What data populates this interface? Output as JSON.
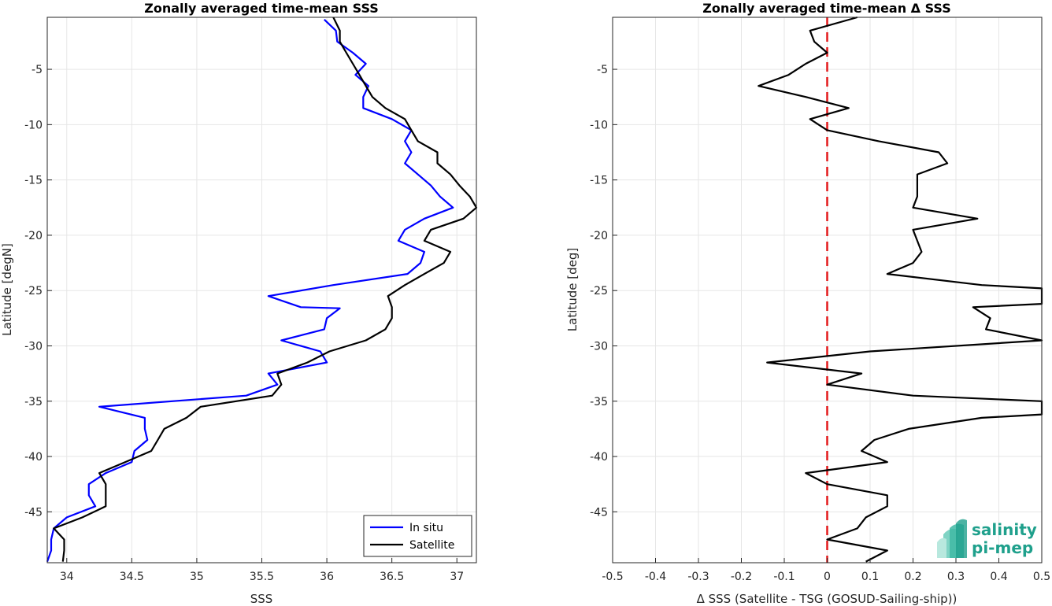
{
  "colors": {
    "insitu": "#0000ff",
    "satellite": "#000000",
    "zero_line": "#e31a1c",
    "grid": "#e6e6e6",
    "logo": "#1fa08c"
  },
  "logo": {
    "line1": "salinity",
    "line2": "pi-mep"
  },
  "chart_data": [
    {
      "type": "line",
      "title": "Zonally averaged time-mean SSS",
      "xlabel": "SSS",
      "ylabel": "Latitude [degN]",
      "xlim": [
        33.85,
        37.15
      ],
      "ylim": [
        -49.6,
        -0.3
      ],
      "xticks": [
        34,
        34.5,
        35,
        35.5,
        36,
        36.5,
        37
      ],
      "xtick_labels": [
        "34",
        "34.5",
        "35",
        "35.5",
        "36",
        "36.5",
        "37"
      ],
      "yticks": [
        -5,
        -10,
        -15,
        -20,
        -25,
        -30,
        -35,
        -40,
        -45
      ],
      "ytick_labels": [
        "-5",
        "-10",
        "-15",
        "-20",
        "-25",
        "-30",
        "-35",
        "-40",
        "-45"
      ],
      "grid": true,
      "legend_position": "bottom-right",
      "series": [
        {
          "name": "In situ",
          "color": "#0000ff",
          "points": [
            [
              35.98,
              -0.5
            ],
            [
              36.07,
              -1.5
            ],
            [
              36.08,
              -2.5
            ],
            [
              36.2,
              -3.5
            ],
            [
              36.3,
              -4.5
            ],
            [
              36.22,
              -5.5
            ],
            [
              36.32,
              -6.5
            ],
            [
              36.28,
              -7.5
            ],
            [
              36.28,
              -8.5
            ],
            [
              36.5,
              -9.5
            ],
            [
              36.65,
              -10.5
            ],
            [
              36.6,
              -11.5
            ],
            [
              36.65,
              -12.5
            ],
            [
              36.6,
              -13.5
            ],
            [
              36.7,
              -14.5
            ],
            [
              36.8,
              -15.5
            ],
            [
              36.87,
              -16.5
            ],
            [
              36.97,
              -17.5
            ],
            [
              36.75,
              -18.5
            ],
            [
              36.6,
              -19.5
            ],
            [
              36.55,
              -20.5
            ],
            [
              36.75,
              -21.5
            ],
            [
              36.72,
              -22.5
            ],
            [
              36.62,
              -23.5
            ],
            [
              36.05,
              -24.5
            ],
            [
              35.55,
              -25.5
            ],
            [
              35.8,
              -26.5
            ],
            [
              36.1,
              -26.6
            ],
            [
              36.0,
              -27.5
            ],
            [
              35.98,
              -28.5
            ],
            [
              35.65,
              -29.5
            ],
            [
              35.95,
              -30.5
            ],
            [
              36.0,
              -31.5
            ],
            [
              35.55,
              -32.5
            ],
            [
              35.62,
              -33.5
            ],
            [
              35.38,
              -34.5
            ],
            [
              34.25,
              -35.5
            ],
            [
              34.6,
              -36.5
            ],
            [
              34.6,
              -37.5
            ],
            [
              34.62,
              -38.5
            ],
            [
              34.52,
              -39.5
            ],
            [
              34.5,
              -40.5
            ],
            [
              34.3,
              -41.5
            ],
            [
              34.17,
              -42.5
            ],
            [
              34.17,
              -43.5
            ],
            [
              34.22,
              -44.5
            ],
            [
              34.0,
              -45.5
            ],
            [
              33.9,
              -46.5
            ],
            [
              33.88,
              -47.5
            ],
            [
              33.88,
              -48.5
            ],
            [
              33.85,
              -49.5
            ]
          ]
        },
        {
          "name": "Satellite",
          "color": "#000000",
          "points": [
            [
              36.05,
              -0.3
            ],
            [
              36.1,
              -1.5
            ],
            [
              36.1,
              -2.5
            ],
            [
              36.15,
              -3.5
            ],
            [
              36.2,
              -4.5
            ],
            [
              36.25,
              -5.5
            ],
            [
              36.3,
              -6.5
            ],
            [
              36.35,
              -7.5
            ],
            [
              36.45,
              -8.5
            ],
            [
              36.6,
              -9.5
            ],
            [
              36.65,
              -10.5
            ],
            [
              36.7,
              -11.5
            ],
            [
              36.85,
              -12.5
            ],
            [
              36.85,
              -13.5
            ],
            [
              36.95,
              -14.5
            ],
            [
              37.02,
              -15.5
            ],
            [
              37.1,
              -16.5
            ],
            [
              37.15,
              -17.5
            ],
            [
              37.05,
              -18.5
            ],
            [
              36.8,
              -19.5
            ],
            [
              36.75,
              -20.5
            ],
            [
              36.95,
              -21.5
            ],
            [
              36.9,
              -22.5
            ],
            [
              36.75,
              -23.5
            ],
            [
              36.6,
              -24.5
            ],
            [
              36.47,
              -25.5
            ],
            [
              36.5,
              -26.5
            ],
            [
              36.5,
              -27.5
            ],
            [
              36.45,
              -28.5
            ],
            [
              36.3,
              -29.5
            ],
            [
              36.02,
              -30.5
            ],
            [
              35.85,
              -31.5
            ],
            [
              35.62,
              -32.5
            ],
            [
              35.65,
              -33.5
            ],
            [
              35.58,
              -34.5
            ],
            [
              35.03,
              -35.5
            ],
            [
              34.92,
              -36.5
            ],
            [
              34.75,
              -37.5
            ],
            [
              34.7,
              -38.5
            ],
            [
              34.65,
              -39.5
            ],
            [
              34.45,
              -40.5
            ],
            [
              34.25,
              -41.5
            ],
            [
              34.3,
              -42.5
            ],
            [
              34.3,
              -43.5
            ],
            [
              34.3,
              -44.5
            ],
            [
              34.12,
              -45.5
            ],
            [
              33.9,
              -46.5
            ],
            [
              33.98,
              -47.5
            ],
            [
              33.98,
              -48.5
            ],
            [
              33.97,
              -49.5
            ]
          ]
        }
      ]
    },
    {
      "type": "line",
      "title": "Zonally averaged time-mean Δ SSS",
      "xlabel": "Δ SSS (Satellite - TSG (GOSUD-Sailing-ship))",
      "ylabel": "Latitude [deg]",
      "xlim": [
        -0.5,
        0.5
      ],
      "ylim": [
        -49.6,
        -0.3
      ],
      "xticks": [
        -0.5,
        -0.4,
        -0.3,
        -0.2,
        -0.1,
        0,
        0.1,
        0.2,
        0.3,
        0.4,
        0.5
      ],
      "xtick_labels": [
        "-0.5",
        "-0.4",
        "-0.3",
        "-0.2",
        "-0.1",
        "0",
        "0.1",
        "0.2",
        "0.3",
        "0.4",
        "0.5"
      ],
      "yticks": [
        -5,
        -10,
        -15,
        -20,
        -25,
        -30,
        -35,
        -40,
        -45
      ],
      "ytick_labels": [
        "-5",
        "-10",
        "-15",
        "-20",
        "-25",
        "-30",
        "-35",
        "-40",
        "-45"
      ],
      "grid": true,
      "reference_line": {
        "x": 0,
        "color": "#e31a1c",
        "style": "dashed"
      },
      "series": [
        {
          "name": "",
          "color": "#000000",
          "points": [
            [
              0.07,
              -0.3
            ],
            [
              -0.04,
              -1.5
            ],
            [
              -0.03,
              -2.5
            ],
            [
              0.0,
              -3.5
            ],
            [
              -0.05,
              -4.5
            ],
            [
              -0.09,
              -5.5
            ],
            [
              -0.16,
              -6.5
            ],
            [
              -0.05,
              -7.5
            ],
            [
              0.05,
              -8.5
            ],
            [
              -0.04,
              -9.5
            ],
            [
              0.0,
              -10.5
            ],
            [
              0.12,
              -11.5
            ],
            [
              0.26,
              -12.5
            ],
            [
              0.28,
              -13.5
            ],
            [
              0.21,
              -14.5
            ],
            [
              0.21,
              -15.5
            ],
            [
              0.21,
              -16.5
            ],
            [
              0.2,
              -17.5
            ],
            [
              0.35,
              -18.5
            ],
            [
              0.2,
              -19.5
            ],
            [
              0.21,
              -20.5
            ],
            [
              0.22,
              -21.5
            ],
            [
              0.2,
              -22.5
            ],
            [
              0.14,
              -23.5
            ],
            [
              0.36,
              -24.5
            ],
            [
              0.5,
              -24.8
            ],
            [
              0.5,
              -26.2
            ],
            [
              0.34,
              -26.5
            ],
            [
              0.38,
              -27.5
            ],
            [
              0.37,
              -28.5
            ],
            [
              0.5,
              -29.5
            ],
            [
              0.1,
              -30.5
            ],
            [
              -0.14,
              -31.5
            ],
            [
              0.08,
              -32.5
            ],
            [
              0.0,
              -33.5
            ],
            [
              0.2,
              -34.5
            ],
            [
              0.5,
              -35.0
            ],
            [
              0.5,
              -36.2
            ],
            [
              0.36,
              -36.5
            ],
            [
              0.19,
              -37.5
            ],
            [
              0.11,
              -38.5
            ],
            [
              0.08,
              -39.5
            ],
            [
              0.14,
              -40.5
            ],
            [
              -0.05,
              -41.5
            ],
            [
              0.0,
              -42.5
            ],
            [
              0.14,
              -43.5
            ],
            [
              0.14,
              -44.5
            ],
            [
              0.09,
              -45.5
            ],
            [
              0.07,
              -46.5
            ],
            [
              0.0,
              -47.5
            ],
            [
              0.14,
              -48.5
            ],
            [
              0.09,
              -49.5
            ]
          ]
        }
      ]
    }
  ]
}
